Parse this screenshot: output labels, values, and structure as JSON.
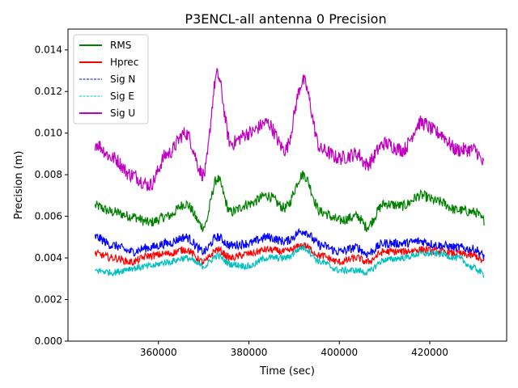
{
  "chart_data": {
    "type": "line",
    "title": "P3ENCL-all antenna 0 Precision",
    "xlabel": "Time (sec)",
    "ylabel": "Precision (m)",
    "xlim": [
      340000,
      437000
    ],
    "ylim": [
      0.0,
      0.015
    ],
    "x_ticks": [
      360000,
      380000,
      400000,
      420000
    ],
    "x_tick_labels": [
      "360000",
      "380000",
      "400000",
      "420000"
    ],
    "y_ticks": [
      0.0,
      0.002,
      0.004,
      0.006,
      0.008,
      0.01,
      0.012,
      0.014
    ],
    "y_tick_labels": [
      "0.000",
      "0.002",
      "0.004",
      "0.006",
      "0.008",
      "0.010",
      "0.012",
      "0.014"
    ],
    "grid": false,
    "legend_position": "top-left",
    "x": [
      346000,
      350000,
      354000,
      358000,
      362000,
      366000,
      370000,
      373000,
      376000,
      380000,
      384000,
      388000,
      392000,
      396000,
      400000,
      404000,
      406000,
      410000,
      414000,
      418000,
      422000,
      426000,
      430000,
      432000
    ],
    "series": [
      {
        "name": "RMS",
        "color": "#008000",
        "style": "solid",
        "noise": 0.00025,
        "values": [
          0.0065,
          0.0062,
          0.006,
          0.0057,
          0.006,
          0.0066,
          0.0055,
          0.0078,
          0.0062,
          0.0066,
          0.007,
          0.0064,
          0.008,
          0.0062,
          0.0058,
          0.006,
          0.0055,
          0.0066,
          0.0065,
          0.007,
          0.0067,
          0.0063,
          0.0062,
          0.0058
        ]
      },
      {
        "name": "Hprec",
        "color": "#ff0000",
        "style": "solid",
        "noise": 0.00018,
        "values": [
          0.0042,
          0.004,
          0.0038,
          0.0041,
          0.0042,
          0.0044,
          0.0038,
          0.0044,
          0.004,
          0.0042,
          0.0044,
          0.0043,
          0.0046,
          0.0041,
          0.0038,
          0.004,
          0.0038,
          0.0043,
          0.0043,
          0.0044,
          0.0043,
          0.0042,
          0.0041,
          0.0038
        ]
      },
      {
        "name": "Sig N",
        "color": "#0000ff",
        "style": "dashed",
        "noise": 0.00022,
        "values": [
          0.005,
          0.0046,
          0.0043,
          0.0045,
          0.0047,
          0.005,
          0.0043,
          0.005,
          0.0046,
          0.0047,
          0.005,
          0.0048,
          0.0053,
          0.0046,
          0.0043,
          0.0045,
          0.0042,
          0.0047,
          0.0047,
          0.0048,
          0.0046,
          0.0045,
          0.0044,
          0.0041
        ]
      },
      {
        "name": "Sig E",
        "color": "#00bfbf",
        "style": "dashed",
        "noise": 0.00016,
        "values": [
          0.0034,
          0.0033,
          0.0035,
          0.0036,
          0.0038,
          0.004,
          0.0036,
          0.0041,
          0.0037,
          0.0036,
          0.004,
          0.004,
          0.0045,
          0.0038,
          0.0034,
          0.0034,
          0.0033,
          0.0039,
          0.004,
          0.0042,
          0.0042,
          0.004,
          0.0035,
          0.0032
        ]
      },
      {
        "name": "Sig U",
        "color": "#bf00bf",
        "style": "solid",
        "noise": 0.00035,
        "values": [
          0.0095,
          0.0088,
          0.008,
          0.0075,
          0.009,
          0.01,
          0.008,
          0.0128,
          0.0095,
          0.01,
          0.0105,
          0.0092,
          0.0125,
          0.0092,
          0.0088,
          0.009,
          0.0085,
          0.0095,
          0.0092,
          0.0105,
          0.01,
          0.0092,
          0.0092,
          0.0085
        ]
      }
    ]
  }
}
